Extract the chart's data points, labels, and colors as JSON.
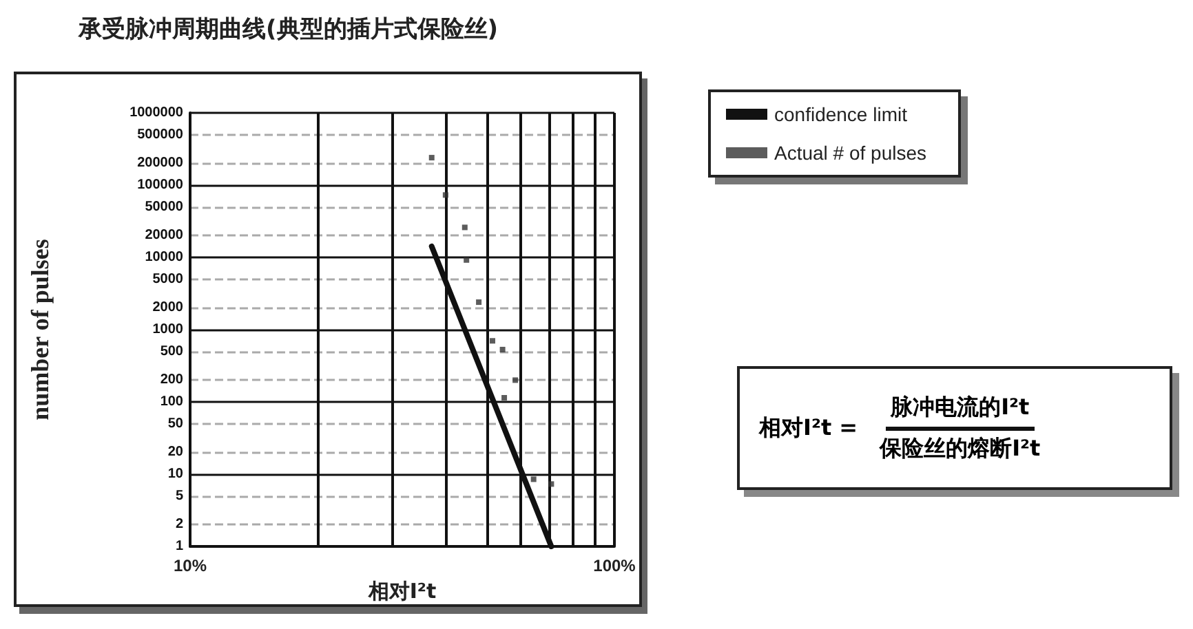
{
  "chart_data": {
    "type": "scatter",
    "title": "承受脉冲周期曲线(典型的插片式保险丝)",
    "xlabel": "相对I²t",
    "ylabel": "number of pulses",
    "annotations": [
      "相对I²t =",
      "脉冲电流的I²t",
      "保险丝的熔断I²t"
    ],
    "series": [
      {
        "name": "confidence limit",
        "type": "line",
        "marker": "none",
        "color": "#111111",
        "x": [
          37.1,
          71.0
        ],
        "values": [
          14200,
          1
        ]
      },
      {
        "name": "Actual # of pulses",
        "marker": "square",
        "color": "#333333",
        "x": [
          37.1,
          40.0,
          44.4,
          44.8,
          47.9,
          51.6,
          54.5,
          58.4,
          55.0,
          64.5,
          71.0
        ],
        "values": [
          240000,
          73000,
          26000,
          9200,
          2400,
          700,
          530,
          200,
          114,
          8.5,
          7.3
        ]
      }
    ],
    "log": "xy",
    "xlim": [
      10,
      100
    ],
    "ylim": [
      1,
      1000000
    ],
    "xticks": [
      {
        "value": 10,
        "label": "10%"
      },
      {
        "value": 20,
        "label": null
      },
      {
        "value": 30,
        "label": null
      },
      {
        "value": 40,
        "label": null
      },
      {
        "value": 50,
        "label": null
      },
      {
        "value": 60,
        "label": null
      },
      {
        "value": 70,
        "label": null
      },
      {
        "value": 80,
        "label": null
      },
      {
        "value": 90,
        "label": null
      },
      {
        "value": 100,
        "label": "100%"
      }
    ],
    "yticks": [
      1,
      2,
      5,
      10,
      20,
      50,
      100,
      200,
      500,
      1000,
      2000,
      5000,
      10000,
      20000,
      50000,
      100000,
      200000,
      500000,
      1000000
    ],
    "grid": true,
    "legend": "top right",
    "line_style": "solid"
  }
}
